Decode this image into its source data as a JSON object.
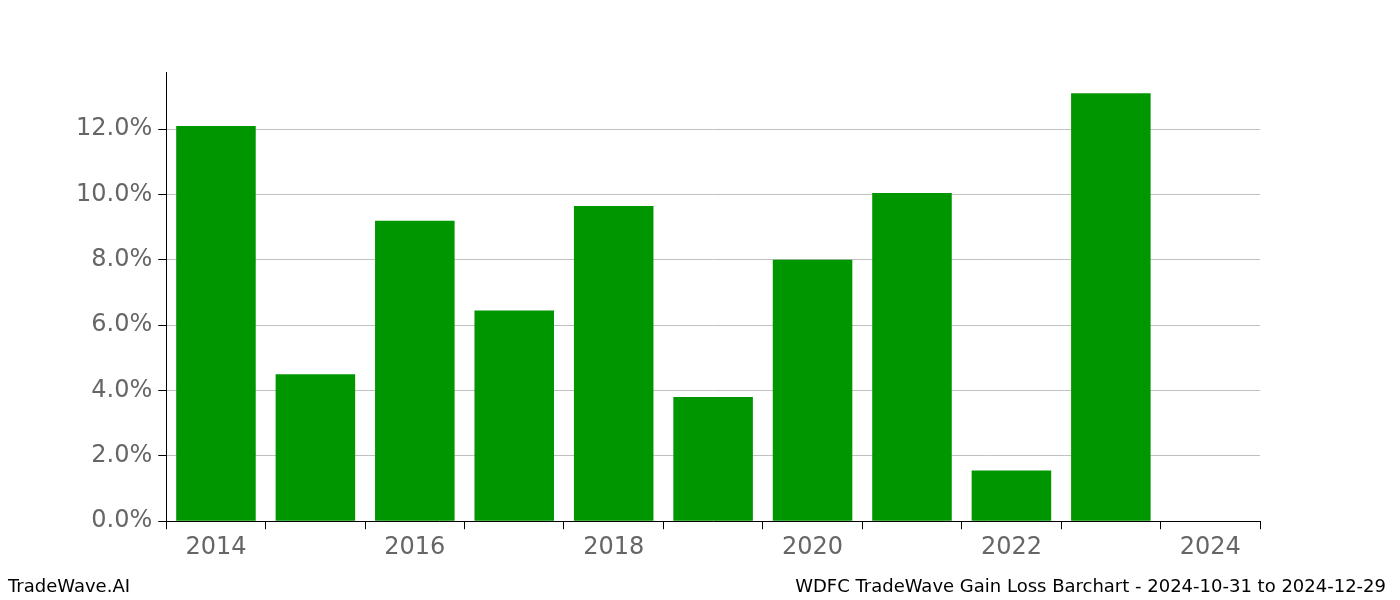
{
  "chart_data": {
    "type": "bar",
    "title": "WDFC TradeWave Gain Loss Barchart - 2024-10-31 to 2024-12-29",
    "annotations": [
      "TradeWave.AI"
    ],
    "categories": [
      "2014",
      null,
      "2016",
      null,
      "2018",
      null,
      "2020",
      null,
      "2022",
      null,
      "2024"
    ],
    "values": [
      12.1,
      4.5,
      9.2,
      6.45,
      9.65,
      3.8,
      8.0,
      10.05,
      1.55,
      13.1,
      null
    ],
    "color": "#009600",
    "ylim": [
      0,
      13.75
    ],
    "yticks": [
      {
        "value": 0,
        "label": "0.0%"
      },
      {
        "value": 2,
        "label": "2.0%"
      },
      {
        "value": 4,
        "label": "4.0%"
      },
      {
        "value": 6,
        "label": "6.0%"
      },
      {
        "value": 8,
        "label": "8.0%"
      },
      {
        "value": 10,
        "label": "10.0%"
      },
      {
        "value": 12,
        "label": "12.0%"
      }
    ],
    "grid": true
  }
}
